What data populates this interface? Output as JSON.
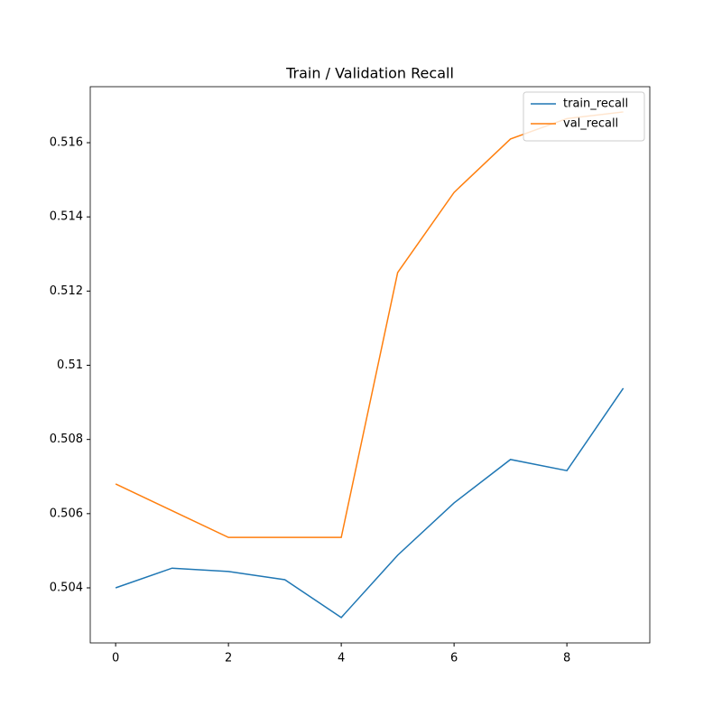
{
  "chart_data": {
    "type": "line",
    "title": "Train / Validation Recall",
    "x": [
      0,
      1,
      2,
      3,
      4,
      5,
      6,
      7,
      8,
      9
    ],
    "series": [
      {
        "name": "train_recall",
        "color": "#1f77b4",
        "values": [
          0.504,
          0.50453,
          0.50444,
          0.50422,
          0.5032,
          0.50488,
          0.50629,
          0.50746,
          0.50716,
          0.50938
        ]
      },
      {
        "name": "val_recall",
        "color": "#ff7f0e",
        "values": [
          0.5068,
          0.50608,
          0.50536,
          0.50536,
          0.50536,
          0.5125,
          0.51466,
          0.5161,
          0.51665,
          0.51683
        ]
      }
    ],
    "xlim": [
      -0.45,
      9.47
    ],
    "xticks": [
      0,
      2,
      4,
      6,
      8
    ],
    "ylim": [
      0.502515,
      0.51751
    ],
    "yticks": [
      0.504,
      0.506,
      0.508,
      0.51,
      0.512,
      0.514,
      0.516
    ],
    "legend": "upper right"
  }
}
